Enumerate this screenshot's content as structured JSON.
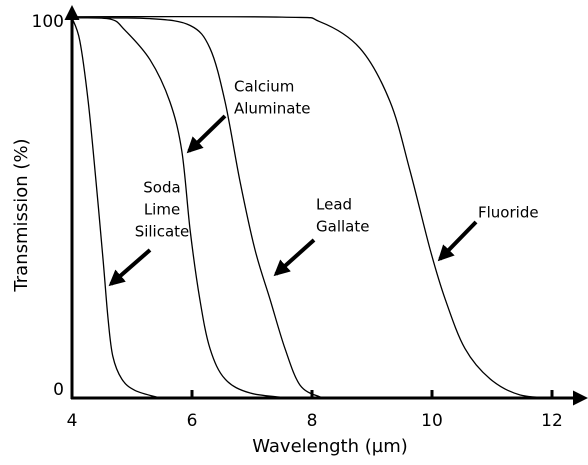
{
  "chart_data": {
    "type": "line",
    "xlabel": "Wavelength (µm)",
    "ylabel": "Transmission (%)",
    "xlim": [
      4,
      12.55
    ],
    "ylim": [
      0,
      102.6
    ],
    "xticks": [
      4,
      6,
      8,
      10,
      12
    ],
    "yticks": [
      0,
      100
    ],
    "series": [
      {
        "color": "#000000",
        "x": [
          4,
          4.13,
          4.27,
          4.4,
          4.52,
          4.6,
          4.68,
          4.83,
          5.05,
          5.47
        ],
        "values": [
          100,
          94,
          78,
          57,
          36,
          21,
          11,
          5,
          2,
          0
        ]
      },
      {
        "color": "#000000",
        "x": [
          4,
          4.63,
          4.88,
          5.3,
          5.63,
          5.83,
          5.97,
          6.13,
          6.3,
          6.55,
          6.97,
          7.63
        ],
        "values": [
          100,
          99.7,
          96.8,
          89,
          78,
          65,
          44,
          26,
          13,
          5,
          1.3,
          0
        ]
      },
      {
        "color": "#000000",
        "x": [
          4,
          5.3,
          5.97,
          6.3,
          6.55,
          6.8,
          7.05,
          7.3,
          7.55,
          7.8,
          8.13,
          8.3
        ],
        "values": [
          100,
          99.8,
          98,
          92,
          78,
          57,
          39,
          26,
          13,
          3.4,
          0.3,
          0
        ]
      },
      {
        "color": "#000000",
        "x": [
          4,
          7.5,
          8.13,
          8.8,
          9.3,
          9.63,
          9.97,
          10.22,
          10.55,
          10.97,
          11.47,
          12.13
        ],
        "values": [
          100.3,
          100.2,
          99,
          92,
          78,
          60,
          39,
          26,
          13,
          5,
          0.8,
          0
        ]
      }
    ],
    "annotations": [
      {
        "text": [
          "Soda",
          "Lime",
          "Silicate"
        ]
      },
      {
        "text": [
          "Calcium",
          "Aluminate"
        ]
      },
      {
        "text": [
          "Lead",
          "Gallate"
        ]
      },
      {
        "text": [
          "Fluoride"
        ]
      }
    ]
  }
}
